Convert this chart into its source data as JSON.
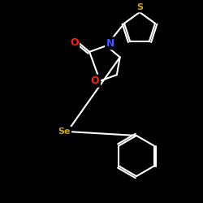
{
  "bg_color": "#000000",
  "bond_color": "#ffffff",
  "atom_colors": {
    "S": "#ccaa00",
    "N": "#4455ff",
    "O": "#ff2200",
    "Se": "#ccaa00",
    "C": "#ffffff"
  },
  "fig_size": [
    2.5,
    2.5
  ],
  "dpi": 100,
  "bond_lw": 1.5
}
